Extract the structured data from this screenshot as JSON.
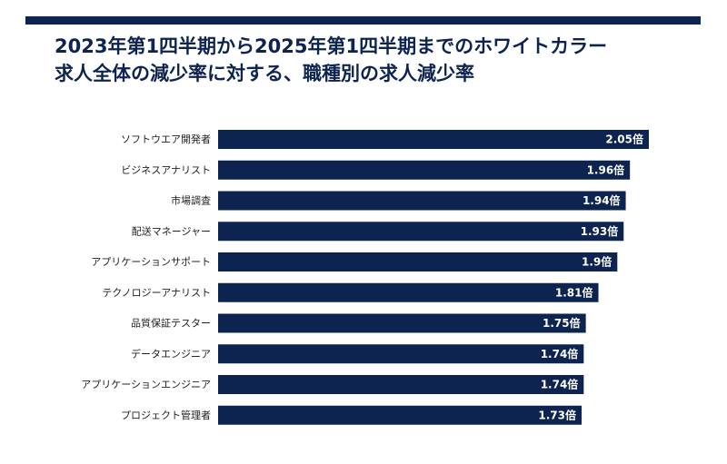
{
  "header": {
    "title_line1": "2023年第1四半期から2025年第1四半期までのホワイトカラー",
    "title_line2": "求人全体の減少率に対する、職種別の求人減少率",
    "rule_color": "#0d2350"
  },
  "chart_data": {
    "type": "bar",
    "orientation": "horizontal",
    "title": "2023年第1四半期から2025年第1四半期までのホワイトカラー求人全体の減少率に対する、職種別の求人減少率",
    "categories": [
      "ソフトウエア開発者",
      "ビジネスアナリスト",
      "市場調査",
      "配送マネージャー",
      "アプリケーションサポート",
      "テクノロジーアナリスト",
      "品質保証テスター",
      "データエンジニア",
      "アプリケーションエンジニア",
      "プロジェクト管理者"
    ],
    "values": [
      2.05,
      1.96,
      1.94,
      1.93,
      1.9,
      1.81,
      1.75,
      1.74,
      1.74,
      1.73
    ],
    "value_labels": [
      "2.05倍",
      "1.96倍",
      "1.94倍",
      "1.93倍",
      "1.9倍",
      "1.81倍",
      "1.75倍",
      "1.74倍",
      "1.74倍",
      "1.73倍"
    ],
    "xlim": [
      0,
      2.05
    ],
    "bar_color": "#0d2350",
    "label_color": "#ffffff",
    "grid": false,
    "axes_visible": false
  }
}
